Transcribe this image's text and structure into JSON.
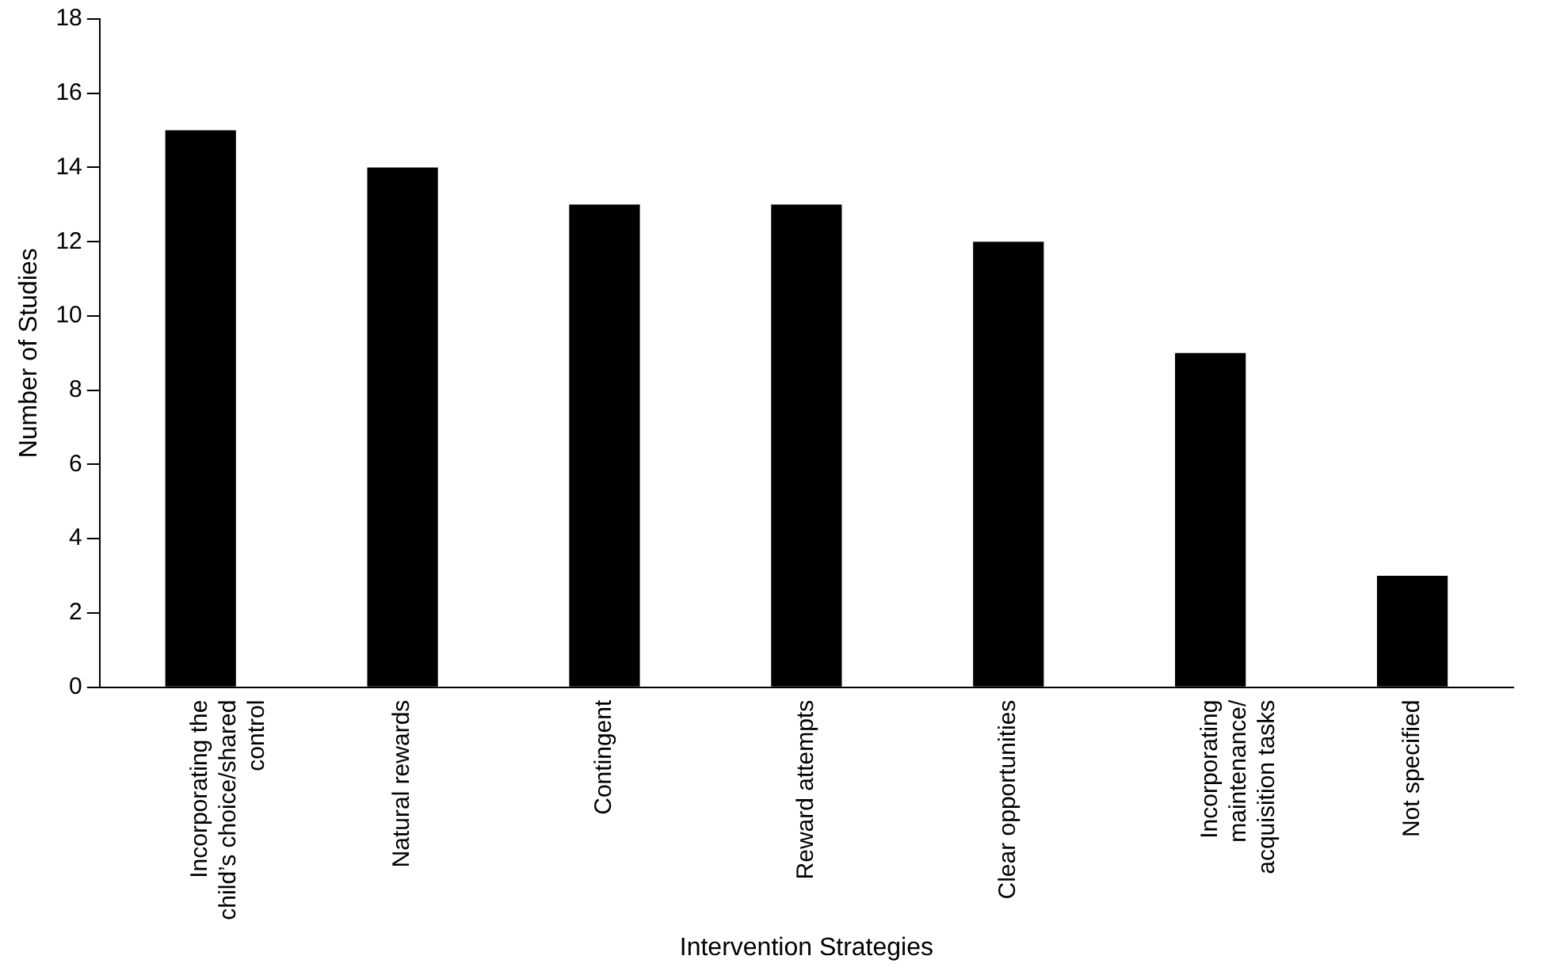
{
  "chart_data": {
    "type": "bar",
    "xlabel": "Intervention Strategies",
    "ylabel": "Number of Studies",
    "categories": [
      "Incorporating the child’s choice/shared control",
      "Natural rewards",
      "Contingent",
      "Reward attempts",
      "Clear opportunities",
      "Incorporating maintenance/acquisition tasks",
      "Not specified"
    ],
    "values": [
      15,
      14,
      13,
      13,
      12,
      9,
      3
    ],
    "color": "#000000",
    "ylim": [
      0,
      18
    ],
    "yticks": [
      0,
      2,
      4,
      6,
      8,
      10,
      12,
      14,
      16,
      18
    ],
    "grid": false,
    "legend": false
  }
}
